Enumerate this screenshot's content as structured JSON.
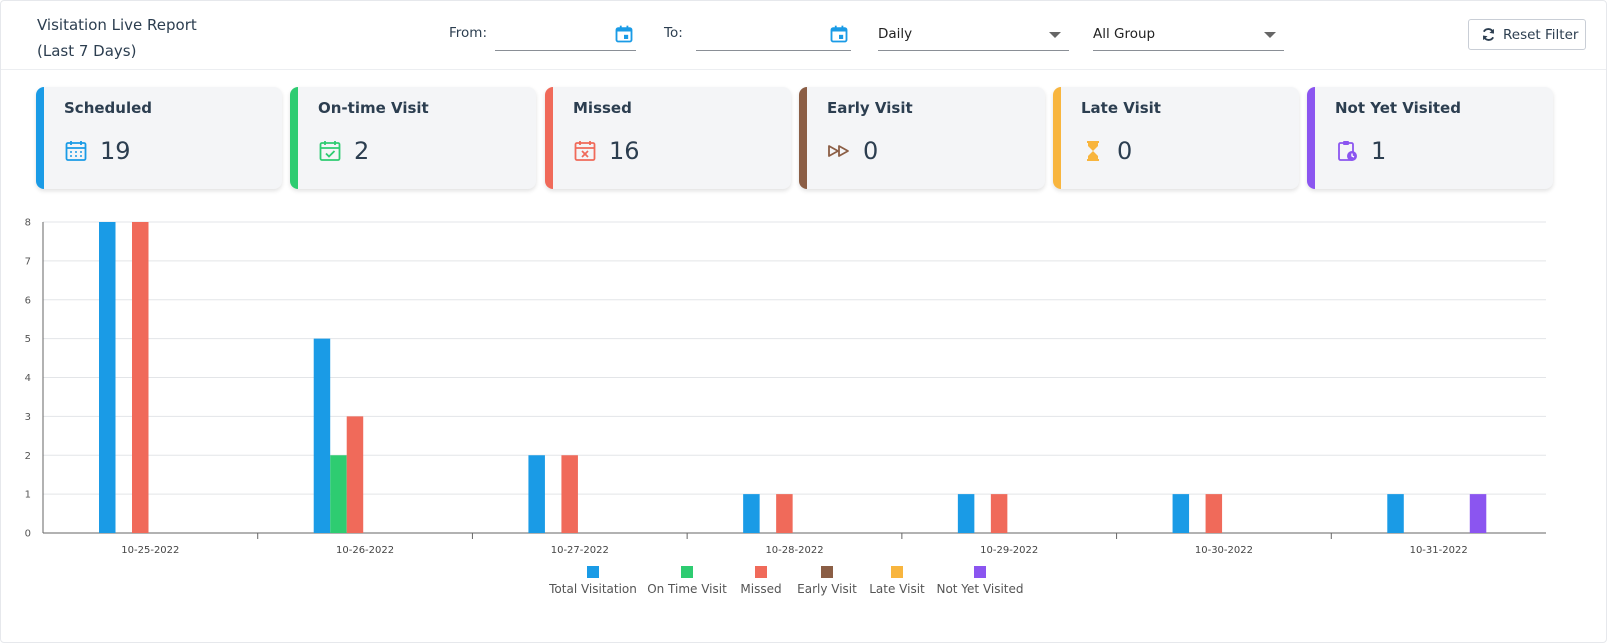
{
  "header": {
    "title_line1": "Visitation Live Report",
    "title_line2": "(Last 7 Days)",
    "from_label": "From:",
    "from_value": "",
    "to_label": "To:",
    "to_value": "",
    "period_select": "Daily",
    "group_select": "All Group",
    "reset_label": "Reset Filter"
  },
  "cards": [
    {
      "title": "Scheduled",
      "value": "19",
      "color": "#1a9be6",
      "icon": "calendar-icon"
    },
    {
      "title": "On-time Visit",
      "value": "2",
      "color": "#2ecc71",
      "icon": "calendar-check-icon"
    },
    {
      "title": "Missed",
      "value": "16",
      "color": "#f06a5a",
      "icon": "calendar-x-icon"
    },
    {
      "title": "Early Visit",
      "value": "0",
      "color": "#8b5e45",
      "icon": "fast-forward-icon"
    },
    {
      "title": "Late Visit",
      "value": "0",
      "color": "#f8b53e",
      "icon": "hourglass-icon"
    },
    {
      "title": "Not Yet Visited",
      "value": "1",
      "color": "#8b55f0",
      "icon": "clipboard-clock-icon"
    }
  ],
  "chart_data": {
    "type": "bar",
    "categories": [
      "10-25-2022",
      "10-26-2022",
      "10-27-2022",
      "10-28-2022",
      "10-29-2022",
      "10-30-2022",
      "10-31-2022"
    ],
    "series": [
      {
        "name": "Total Visitation",
        "color": "#1a9be6",
        "values": [
          8,
          5,
          2,
          1,
          1,
          1,
          1
        ]
      },
      {
        "name": "On Time Visit",
        "color": "#2ecc71",
        "values": [
          0,
          2,
          0,
          0,
          0,
          0,
          0
        ]
      },
      {
        "name": "Missed",
        "color": "#f06a5a",
        "values": [
          8,
          3,
          2,
          1,
          1,
          1,
          0
        ]
      },
      {
        "name": "Early Visit",
        "color": "#8b5e45",
        "values": [
          0,
          0,
          0,
          0,
          0,
          0,
          0
        ]
      },
      {
        "name": "Late Visit",
        "color": "#f8b53e",
        "values": [
          0,
          0,
          0,
          0,
          0,
          0,
          0
        ]
      },
      {
        "name": "Not Yet Visited",
        "color": "#8b55f0",
        "values": [
          0,
          0,
          0,
          0,
          0,
          0,
          1
        ]
      }
    ],
    "ylim": [
      0,
      8
    ],
    "yticks": [
      "0",
      "1",
      "2",
      "3",
      "4",
      "5",
      "6",
      "7",
      "8"
    ],
    "grid": true,
    "legend_position": "bottom"
  }
}
